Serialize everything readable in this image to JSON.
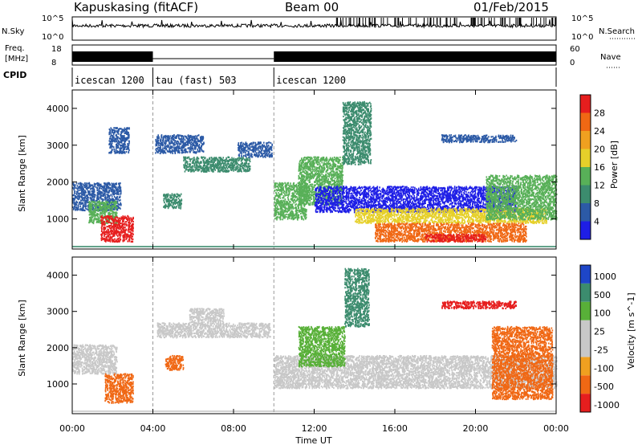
{
  "header": {
    "station": "Kapuskasing (fitACF)",
    "beam": "Beam 00",
    "date": "01/Feb/2015"
  },
  "status_panels": {
    "nsky_label": "N.Sky",
    "nsky_ticks": [
      "10^5",
      "10^0"
    ],
    "nsearch_label": "N.Search",
    "nsearch_ticks": [
      "10^5",
      "10^0"
    ],
    "freq_label_line1": "Freq.",
    "freq_label_line2": "[MHz]",
    "freq_ticks": [
      "18",
      "8"
    ],
    "nave_label": "Nave",
    "nave_ticks": [
      "60",
      "0"
    ],
    "cpid_label": "CPID",
    "cpid_segments": [
      {
        "start": 0,
        "end": 4,
        "name": "icescan 1200"
      },
      {
        "start": 4,
        "end": 10,
        "name": "tau (fast) 503"
      },
      {
        "start": 10,
        "end": 24,
        "name": "icescan 1200"
      }
    ],
    "freq_blocks": [
      {
        "start": 0,
        "end": 4
      },
      {
        "start": 10,
        "end": 24
      }
    ]
  },
  "chart_data": [
    {
      "type": "heatmap",
      "panel": "power",
      "ylabel": "Slant Range [km]",
      "x_ticks": [
        "00:00",
        "04:00",
        "08:00",
        "12:00",
        "16:00",
        "20:00",
        "00:00"
      ],
      "xlim_hours": [
        0,
        24
      ],
      "y_ticks": [
        "1000",
        "2000",
        "3000",
        "4000"
      ],
      "ylim": [
        180,
        4500
      ],
      "colorbar": {
        "label": "Power [dB]",
        "ticks": [
          "4",
          "8",
          "12",
          "16",
          "20",
          "24",
          "28"
        ],
        "colors": [
          "#1e1ee6",
          "#2c5aa6",
          "#3c8c6e",
          "#58b058",
          "#e6d02a",
          "#f0a020",
          "#f06814",
          "#e61e1e"
        ]
      },
      "regions": [
        {
          "t0": 0.0,
          "t1": 2.4,
          "r0": 1250,
          "r1": 2000,
          "color": "#2c5aa6"
        },
        {
          "t0": 0.8,
          "t1": 2.2,
          "r0": 900,
          "r1": 1500,
          "color": "#58b058"
        },
        {
          "t0": 1.4,
          "t1": 3.0,
          "r0": 400,
          "r1": 1100,
          "color": "#e61e1e"
        },
        {
          "t0": 1.8,
          "t1": 2.8,
          "r0": 2800,
          "r1": 3500,
          "color": "#2c5aa6"
        },
        {
          "t0": 4.1,
          "t1": 6.5,
          "r0": 2800,
          "r1": 3300,
          "color": "#2c5aa6"
        },
        {
          "t0": 5.5,
          "t1": 8.8,
          "r0": 2300,
          "r1": 2700,
          "color": "#3c8c6e"
        },
        {
          "t0": 8.2,
          "t1": 9.9,
          "r0": 2700,
          "r1": 3100,
          "color": "#2c5aa6"
        },
        {
          "t0": 4.5,
          "t1": 5.4,
          "r0": 1300,
          "r1": 1700,
          "color": "#3c8c6e"
        },
        {
          "t0": 10.0,
          "t1": 11.6,
          "r0": 1000,
          "r1": 2000,
          "color": "#58b058"
        },
        {
          "t0": 11.2,
          "t1": 13.4,
          "r0": 1400,
          "r1": 2700,
          "color": "#58b058"
        },
        {
          "t0": 13.4,
          "t1": 14.8,
          "r0": 2500,
          "r1": 4200,
          "color": "#3c8c6e"
        },
        {
          "t0": 12.0,
          "t1": 22.0,
          "r0": 1200,
          "r1": 1900,
          "color": "#1e1ee6"
        },
        {
          "t0": 14.0,
          "t1": 23.5,
          "r0": 900,
          "r1": 1300,
          "color": "#e6d02a"
        },
        {
          "t0": 15.0,
          "t1": 22.5,
          "r0": 400,
          "r1": 900,
          "color": "#f06814"
        },
        {
          "t0": 17.5,
          "t1": 20.5,
          "r0": 400,
          "r1": 600,
          "color": "#e61e1e"
        },
        {
          "t0": 20.5,
          "t1": 24.0,
          "r0": 1000,
          "r1": 2200,
          "color": "#58b058"
        },
        {
          "t0": 18.3,
          "t1": 22.0,
          "r0": 3100,
          "r1": 3300,
          "color": "#2c5aa6"
        }
      ]
    },
    {
      "type": "heatmap",
      "panel": "velocity",
      "ylabel": "Slant Range [km]",
      "xlabel": "Time UT",
      "x_ticks": [
        "00:00",
        "04:00",
        "08:00",
        "12:00",
        "16:00",
        "20:00",
        "00:00"
      ],
      "xlim_hours": [
        0,
        24
      ],
      "y_ticks": [
        "1000",
        "2000",
        "3000",
        "4000"
      ],
      "ylim": [
        180,
        4500
      ],
      "colorbar": {
        "label": "Velocity [m s^-1]",
        "ticks": [
          "1000",
          "500",
          "100",
          "25",
          "-25",
          "-100",
          "-500",
          "-1000"
        ],
        "colors": [
          "#1e46c8",
          "#3c8c6e",
          "#58b038",
          "#c8c8c8",
          "#c8c8c8",
          "#f0a020",
          "#f06814",
          "#e61e1e"
        ]
      },
      "regions": [
        {
          "t0": 0.0,
          "t1": 2.2,
          "r0": 1300,
          "r1": 2100,
          "color": "#c8c8c8"
        },
        {
          "t0": 1.6,
          "t1": 3.0,
          "r0": 500,
          "r1": 1300,
          "color": "#f06814"
        },
        {
          "t0": 4.6,
          "t1": 5.5,
          "r0": 1400,
          "r1": 1800,
          "color": "#f06814"
        },
        {
          "t0": 4.2,
          "t1": 9.8,
          "r0": 2300,
          "r1": 2700,
          "color": "#c8c8c8"
        },
        {
          "t0": 5.8,
          "t1": 7.5,
          "r0": 2700,
          "r1": 3100,
          "color": "#c8c8c8"
        },
        {
          "t0": 10.0,
          "t1": 24.0,
          "r0": 900,
          "r1": 1800,
          "color": "#c8c8c8"
        },
        {
          "t0": 11.2,
          "t1": 13.5,
          "r0": 1500,
          "r1": 2600,
          "color": "#58b038"
        },
        {
          "t0": 13.5,
          "t1": 14.7,
          "r0": 2600,
          "r1": 4200,
          "color": "#3c8c6e"
        },
        {
          "t0": 20.8,
          "t1": 23.8,
          "r0": 600,
          "r1": 2600,
          "color": "#f06814"
        },
        {
          "t0": 18.3,
          "t1": 22.0,
          "r0": 3100,
          "r1": 3300,
          "color": "#e61e1e"
        }
      ]
    }
  ]
}
